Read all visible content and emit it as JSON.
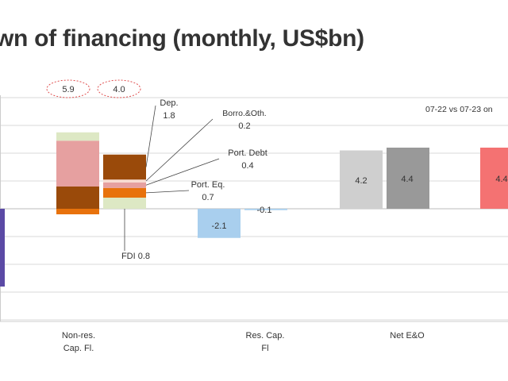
{
  "title": "wn of financing (monthly, US$bn)",
  "colors": {
    "dep": "#9a4a0a",
    "borro": "#f8ddd2",
    "port_debt": "#e6a0a0",
    "port_eq": "#e8720c",
    "fdi": "#dde8c4",
    "res_cap": "#a9cfee",
    "neo_a": "#cfcfcf",
    "neo_b": "#999999",
    "red": "#f47272",
    "current": "#5b4aa5",
    "totals_ring": "#e05050"
  },
  "chart_data": {
    "type": "bar",
    "title": "wn of financing (monthly, US$bn)",
    "note": "07-22 vs 07-23 on",
    "categories": [
      "Non-res. Cap. Fl.",
      "Res. Cap. Fl",
      "Net E&O"
    ],
    "category_lines": [
      [
        "Non-res.",
        "Cap. Fl."
      ],
      [
        "Res. Cap.",
        "Fl"
      ],
      [
        "Net E&O"
      ]
    ],
    "totals": [
      {
        "category": "Non-res. Cap. Fl.",
        "label": "5.9",
        "value": 5.9
      },
      {
        "category": "Non-res. Cap. Fl.",
        "label": "4.0",
        "value": 4.0
      }
    ],
    "nonres_2022": [
      {
        "name": "Dep.",
        "value": 1.6
      },
      {
        "name": "Port. Debt",
        "value": 3.3
      },
      {
        "name": "FDI",
        "value": 0.6
      },
      {
        "name": "Port. Eq.",
        "value": -0.4
      }
    ],
    "nonres_2023": [
      {
        "name": "FDI",
        "label": "FDI 0.8",
        "value": 0.8
      },
      {
        "name": "Port. Eq.",
        "label": "Port. Eq.",
        "value_label": "0.7",
        "value": 0.7
      },
      {
        "name": "Port. Debt",
        "label": "Port. Debt",
        "value_label": "0.4",
        "value": 0.4
      },
      {
        "name": "Borro.&Oth.",
        "label": "Borro.&Oth.",
        "value_label": "0.2",
        "value": 0.2
      },
      {
        "name": "Dep.",
        "label": "Dep.",
        "value_label": "1.8",
        "value": 1.8
      }
    ],
    "res_cap": [
      {
        "period": "07-22",
        "label": "-2.1",
        "value": -2.1
      },
      {
        "period": "07-23",
        "label": "-0.1",
        "value": -0.1
      }
    ],
    "net_eo": [
      {
        "period": "07-22",
        "label": "4.2",
        "value": 4.2
      },
      {
        "period": "07-23",
        "label": "4.4",
        "value": 4.4
      }
    ],
    "partial_right": {
      "label": "4.4",
      "value": 4.4
    },
    "partial_left": {
      "value": -5.6
    },
    "ylim": [
      -8,
      8
    ],
    "grid": true
  }
}
